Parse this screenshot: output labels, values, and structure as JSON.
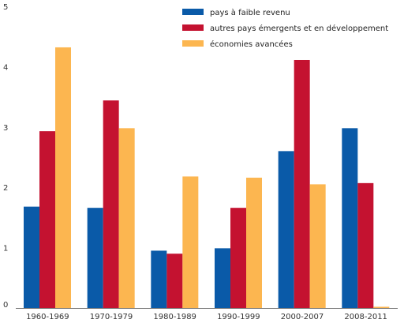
{
  "chart_data": {
    "type": "bar",
    "title": "",
    "xlabel": "",
    "ylabel": "",
    "ylim": [
      0,
      5
    ],
    "yticks": [
      0,
      1,
      2,
      3,
      4,
      5
    ],
    "grid": false,
    "legend_position": "top-right",
    "categories": [
      "1960-1969",
      "1970-1979",
      "1980-1989",
      "1990-1999",
      "2000-2007",
      "2008-2011"
    ],
    "series": [
      {
        "name": "pays à faible revenu",
        "color": "#0a5aa8",
        "values": [
          1.68,
          1.66,
          0.95,
          0.99,
          2.6,
          2.98
        ]
      },
      {
        "name": "autres pays émergents et en développement",
        "color": "#c41230",
        "values": [
          2.93,
          3.44,
          0.9,
          1.66,
          4.11,
          2.07
        ]
      },
      {
        "name": "économies avancées",
        "color": "#fcb650",
        "values": [
          4.32,
          2.98,
          2.18,
          2.16,
          2.05,
          0.02
        ]
      }
    ]
  }
}
